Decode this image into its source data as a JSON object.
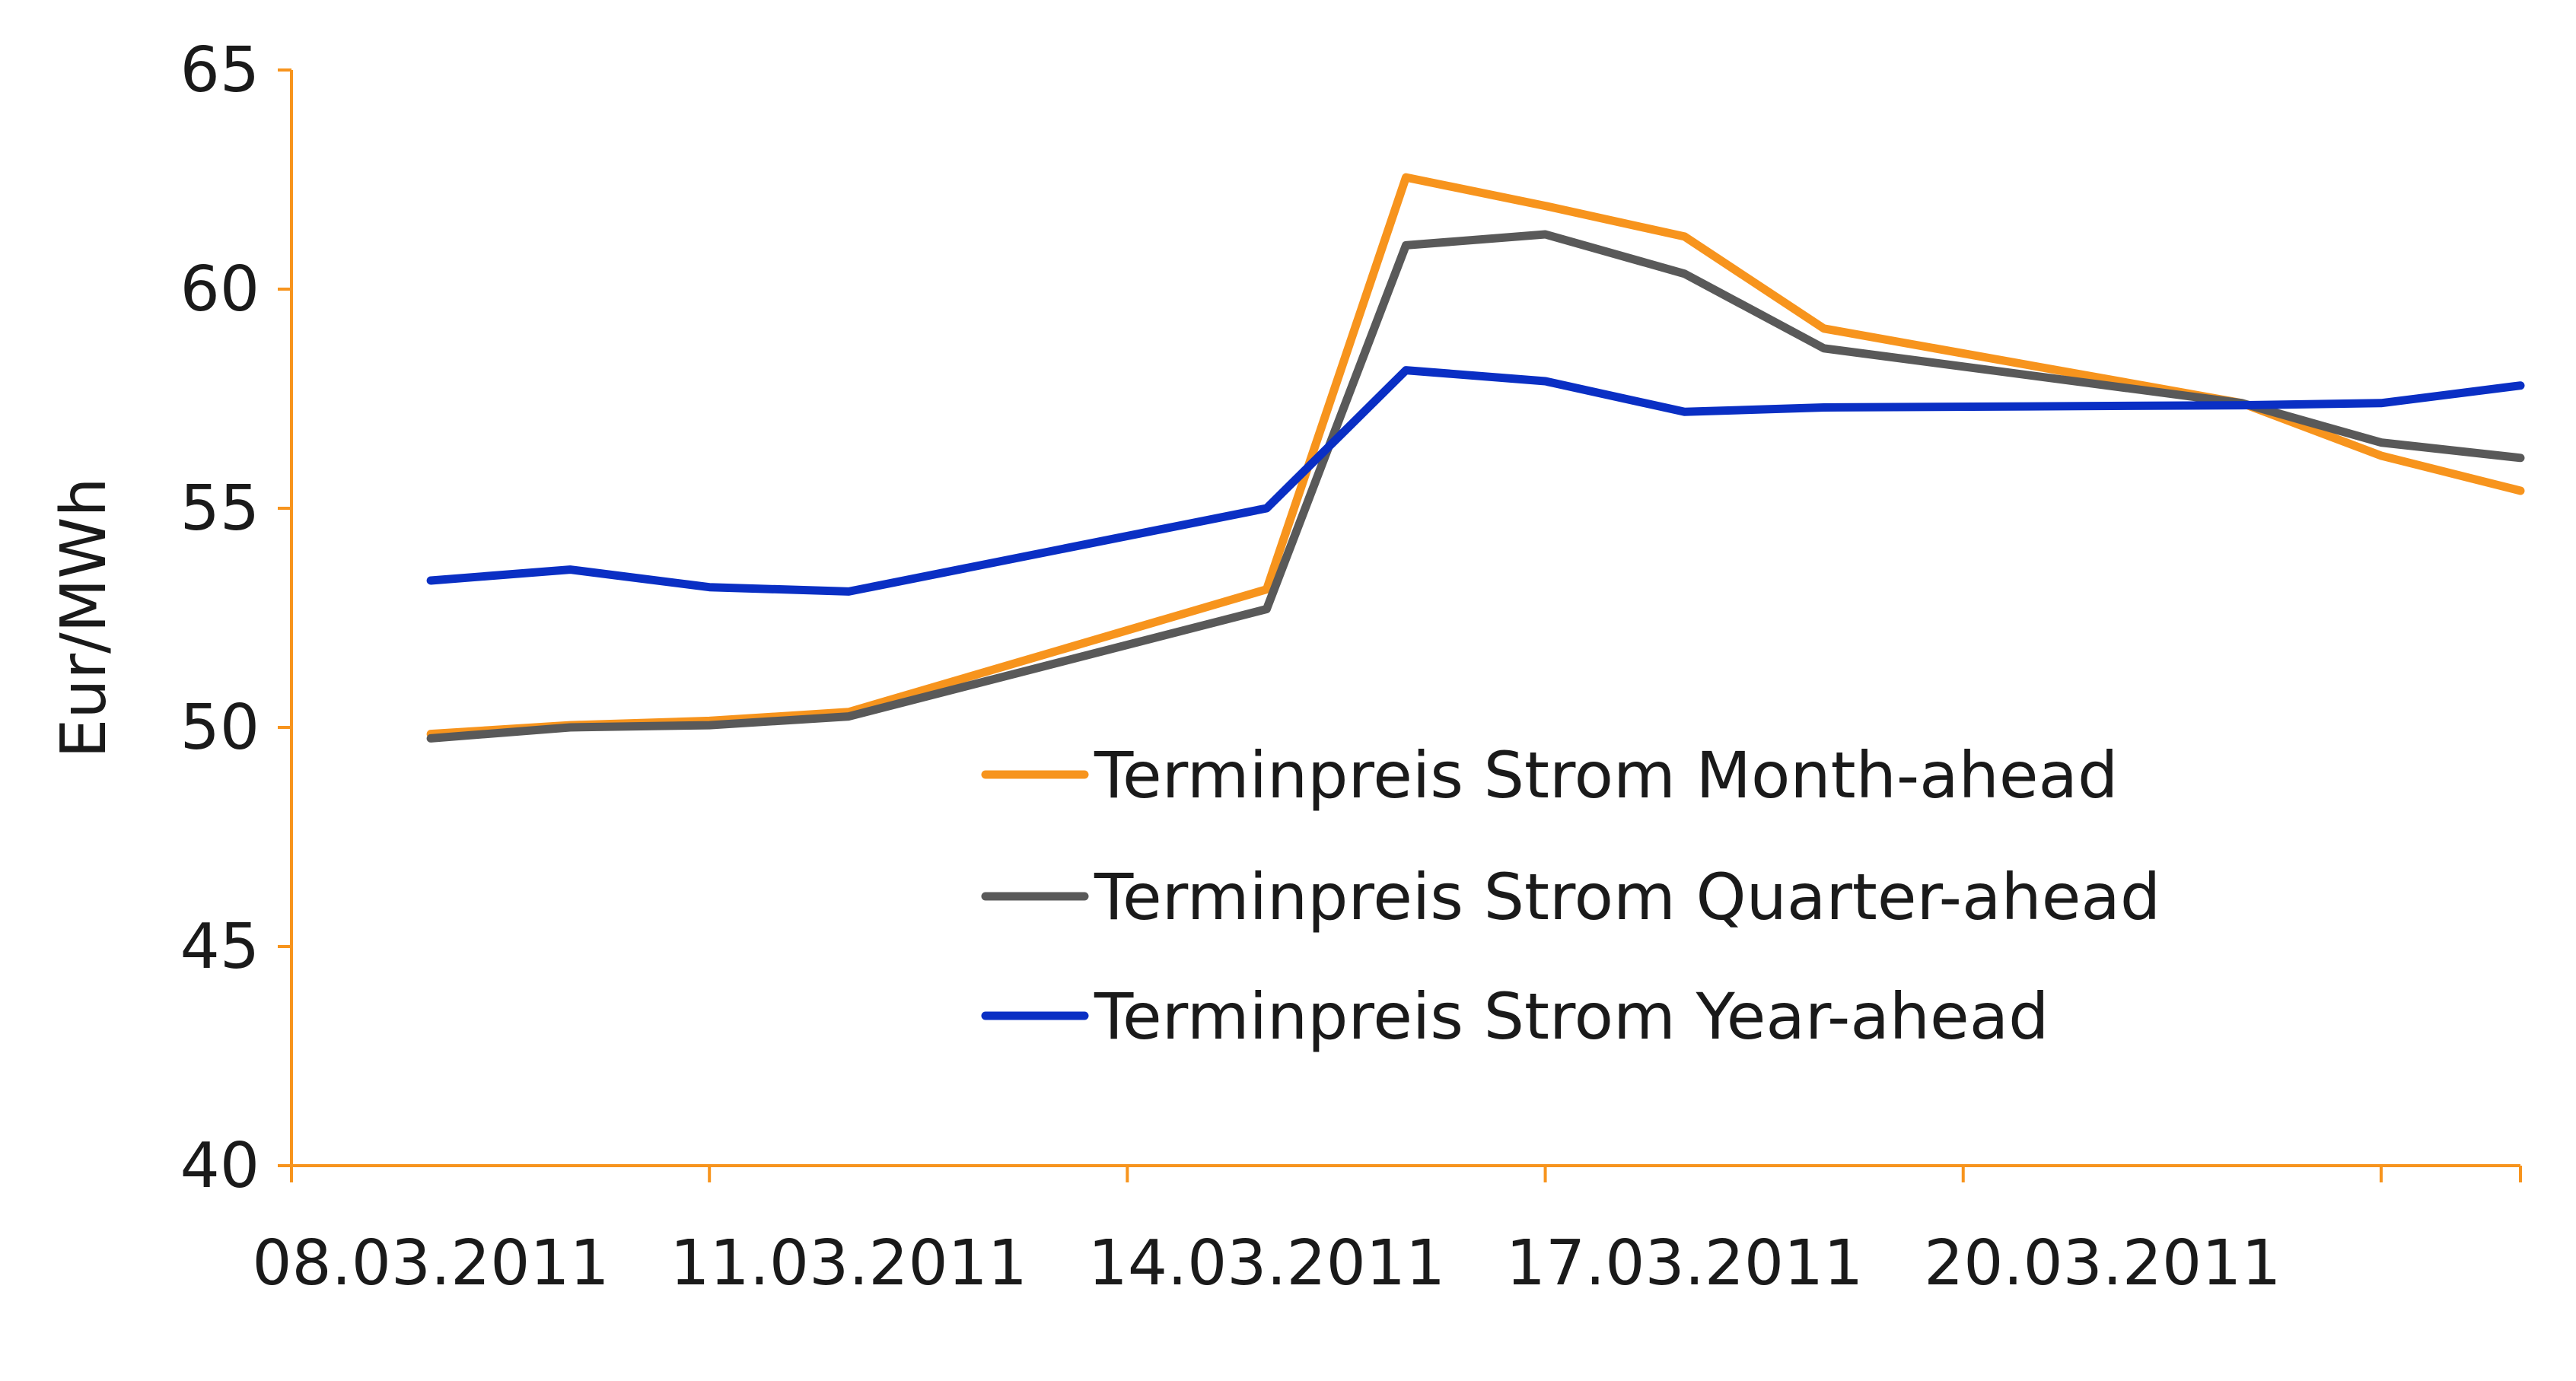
{
  "chart_data": {
    "type": "line",
    "title": "",
    "xlabel": "",
    "ylabel": "Eur/MWh",
    "ylim": [
      40,
      65
    ],
    "yticks": [
      "40",
      "45",
      "50",
      "55",
      "60",
      "65"
    ],
    "xlim": [
      "07.03.2011",
      "23.03.2011"
    ],
    "xtick_labels": [
      "08.03.2011",
      "11.03.2011",
      "14.03.2011",
      "17.03.2011",
      "20.03.2011"
    ],
    "x": [
      "08.03.2011",
      "09.03.2011",
      "10.03.2011",
      "11.03.2011",
      "14.03.2011",
      "15.03.2011",
      "16.03.2011",
      "17.03.2011",
      "18.03.2011",
      "21.03.2011",
      "22.03.2011",
      "23.03.2011"
    ],
    "grid": false,
    "legend_position": "center-right",
    "series": [
      {
        "name": "Terminpreis Strom Month-ahead",
        "color": "#f7941d",
        "values": [
          49.85,
          50.05,
          50.15,
          50.35,
          53.15,
          62.55,
          61.9,
          61.2,
          59.1,
          57.4,
          56.2,
          55.4
        ]
      },
      {
        "name": "Terminpreis Strom Quarter-ahead",
        "color": "#595959",
        "values": [
          49.75,
          50.0,
          50.05,
          50.25,
          52.7,
          61.0,
          61.25,
          60.35,
          58.65,
          57.4,
          56.5,
          56.15
        ]
      },
      {
        "name": "Terminpreis Strom Year-ahead",
        "color": "#0a2fc4",
        "values": [
          53.35,
          53.6,
          53.2,
          53.1,
          55.0,
          58.15,
          57.9,
          57.2,
          57.3,
          57.35,
          57.4,
          57.8
        ]
      }
    ]
  },
  "colors": {
    "axis": "#f7941d",
    "text": "#1a1a1a"
  }
}
